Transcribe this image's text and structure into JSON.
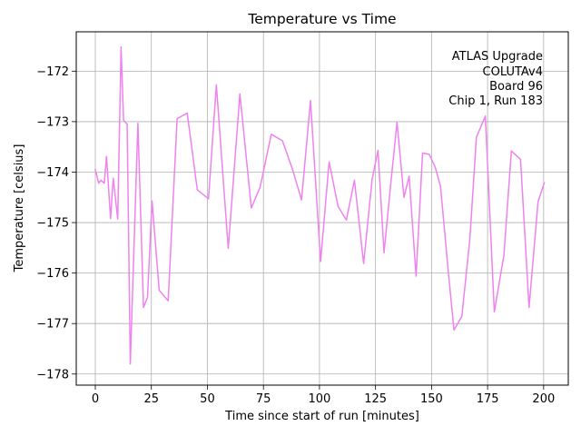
{
  "chart_data": {
    "type": "line",
    "title": "Temperature vs Time",
    "xlabel": "Time since start of run [minutes]",
    "ylabel": "Temperature [celsius]",
    "xlim": [
      -8.5,
      211
    ],
    "ylim": [
      -178.22,
      -171.22
    ],
    "xticks": [
      0,
      25,
      50,
      75,
      100,
      125,
      150,
      175,
      200
    ],
    "yticks": [
      -178,
      -177,
      -176,
      -175,
      -174,
      -173,
      -172
    ],
    "grid": true,
    "annotation": [
      "ATLAS Upgrade",
      "COLUTAv4",
      "Board 96",
      "Chip 1, Run 183"
    ],
    "annotation_position": "top-right",
    "series": [
      {
        "name": "Temperature",
        "color": "#ee82ee",
        "x": [
          0,
          1.5,
          2.5,
          4,
          5,
          6.8,
          8,
          10,
          11.5,
          12.6,
          14.2,
          15.6,
          19,
          21.5,
          23.3,
          25.3,
          28.5,
          32.5,
          36.5,
          41,
          45.5,
          50.5,
          54,
          59.3,
          64.5,
          69.6,
          73.5,
          78.5,
          83.5,
          88,
          92,
          96,
          100.5,
          104.3,
          108.3,
          112,
          115.6,
          119.7,
          123.5,
          126.1,
          128.8,
          131.6,
          134.6,
          137.7,
          140,
          143.1,
          146,
          149,
          151.6,
          154,
          157.3,
          160,
          163.5,
          167.1,
          170,
          174,
          178,
          182.3,
          185.6,
          189.7,
          193.5,
          197.5,
          200.3
        ],
        "y": [
          -173.95,
          -174.22,
          -174.16,
          -174.22,
          -173.69,
          -174.92,
          -174.12,
          -174.93,
          -171.52,
          -172.97,
          -173.05,
          -177.8,
          -173.03,
          -176.68,
          -176.48,
          -174.57,
          -176.34,
          -176.55,
          -172.94,
          -172.83,
          -174.35,
          -174.53,
          -172.27,
          -175.51,
          -172.45,
          -174.71,
          -174.3,
          -173.25,
          -173.38,
          -173.95,
          -174.55,
          -172.58,
          -175.77,
          -173.8,
          -174.68,
          -174.95,
          -174.16,
          -175.81,
          -174.14,
          -173.57,
          -175.6,
          -174.32,
          -173.01,
          -174.5,
          -174.08,
          -176.06,
          -173.62,
          -173.65,
          -173.9,
          -174.28,
          -175.89,
          -177.13,
          -176.86,
          -175.32,
          -173.31,
          -172.89,
          -176.77,
          -175.64,
          -173.58,
          -173.75,
          -176.68,
          -174.59,
          -174.21
        ]
      }
    ]
  }
}
